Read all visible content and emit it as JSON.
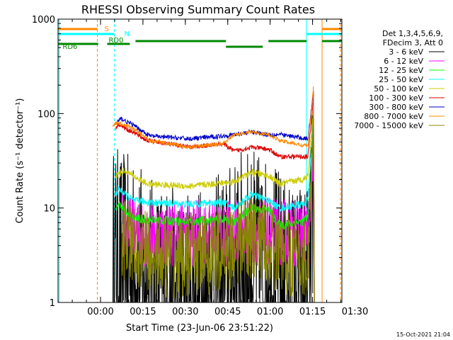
{
  "chart_data": {
    "type": "line",
    "title": "RHESSI Observing Summary Count Rates",
    "xlabel": "Start Time (23-Jun-06 23:51:22)",
    "ylabel": "Count Rate (s⁻¹ detector⁻¹)",
    "yscale": "log",
    "ylim": [
      1,
      1000
    ],
    "xlim_minutes": [
      -6.4,
      94
    ],
    "x_ticks": [
      {
        "m": 8.63,
        "label": "00:00"
      },
      {
        "m": 23.63,
        "label": "00:15"
      },
      {
        "m": 38.63,
        "label": "00:30"
      },
      {
        "m": 53.63,
        "label": "00:45"
      },
      {
        "m": 68.63,
        "label": "01:00"
      },
      {
        "m": 83.63,
        "label": "01:15"
      },
      {
        "m": 98.63,
        "label": "01:30"
      }
    ],
    "y_ticks": [
      {
        "v": 1,
        "label": "1"
      },
      {
        "v": 10,
        "label": "10"
      },
      {
        "v": 100,
        "label": "100"
      },
      {
        "v": 1000,
        "label": "1000"
      }
    ],
    "legend_header": [
      "Det 1,3,4,5,6,9,",
      "FDecim 3, Att 0"
    ],
    "legend_position": "top-right",
    "timestamp": "15-Oct-2021 21:04",
    "series": [
      {
        "name": "3 - 6 keV",
        "color": "#000000",
        "points": [
          [
            13,
            3
          ],
          [
            14,
            3
          ],
          [
            20,
            2.2
          ],
          [
            28,
            1.3
          ],
          [
            40,
            1
          ],
          [
            52,
            1.6
          ],
          [
            60,
            3
          ],
          [
            70,
            2
          ],
          [
            76,
            1.2
          ],
          [
            82,
            1.4
          ],
          [
            83,
            3.6
          ],
          [
            84,
            22
          ]
        ],
        "noise": 0.4,
        "dense": true
      },
      {
        "name": "6 - 12 keV",
        "color": "#ff00ff",
        "points": [
          [
            16,
            7
          ],
          [
            21,
            5.4
          ],
          [
            28,
            5.5
          ],
          [
            40,
            5.5
          ],
          [
            52,
            5.5
          ],
          [
            65,
            5.6
          ],
          [
            75,
            5.5
          ],
          [
            82,
            5.5
          ],
          [
            84,
            40
          ]
        ],
        "noise": 0.12,
        "dense": true
      },
      {
        "name": "12 - 25 keV",
        "color": "#00ff00",
        "points": [
          [
            14,
            9
          ],
          [
            15,
            11
          ],
          [
            16,
            10
          ],
          [
            20,
            7.8
          ],
          [
            25,
            7.5
          ],
          [
            40,
            7.2
          ],
          [
            52,
            7.6
          ],
          [
            56,
            7
          ],
          [
            62,
            10
          ],
          [
            68,
            9.5
          ],
          [
            72,
            6.5
          ],
          [
            80,
            7.2
          ],
          [
            82,
            8
          ],
          [
            84,
            55
          ]
        ],
        "noise": 0.05
      },
      {
        "name": "25 - 50 keV",
        "color": "#00ffff",
        "points": [
          [
            14,
            14
          ],
          [
            15,
            16
          ],
          [
            20,
            12
          ],
          [
            25,
            11.5
          ],
          [
            40,
            11
          ],
          [
            52,
            11.5
          ],
          [
            56,
            10
          ],
          [
            62,
            14
          ],
          [
            68,
            12
          ],
          [
            72,
            10
          ],
          [
            80,
            11
          ],
          [
            82,
            12
          ],
          [
            84,
            110
          ]
        ],
        "noise": 0.04
      },
      {
        "name": "50 - 100 keV",
        "color": "#cccc00",
        "points": [
          [
            14,
            22
          ],
          [
            17,
            25
          ],
          [
            20,
            22
          ],
          [
            25,
            18
          ],
          [
            40,
            17
          ],
          [
            52,
            18.5
          ],
          [
            56,
            19
          ],
          [
            62,
            24
          ],
          [
            68,
            22
          ],
          [
            72,
            18
          ],
          [
            80,
            20
          ],
          [
            82,
            22
          ],
          [
            84,
            120
          ]
        ],
        "noise": 0.035
      },
      {
        "name": "100 - 300 keV",
        "color": "#dd0000",
        "points": [
          [
            14,
            70
          ],
          [
            15,
            78
          ],
          [
            18,
            68
          ],
          [
            20,
            64
          ],
          [
            25,
            52
          ],
          [
            40,
            44
          ],
          [
            52,
            48
          ],
          [
            56,
            40
          ],
          [
            62,
            44
          ],
          [
            68,
            42
          ],
          [
            72,
            35
          ],
          [
            82,
            35
          ],
          [
            84,
            150
          ]
        ],
        "noise": 0.025
      },
      {
        "name": "300 - 800 keV",
        "color": "#0000cc",
        "points": [
          [
            14,
            80
          ],
          [
            16,
            88
          ],
          [
            20,
            76
          ],
          [
            26,
            58
          ],
          [
            40,
            54
          ],
          [
            52,
            58
          ],
          [
            56,
            60
          ],
          [
            62,
            64
          ],
          [
            68,
            60
          ],
          [
            72,
            60
          ],
          [
            80,
            55
          ],
          [
            82,
            54
          ],
          [
            84,
            180
          ]
        ],
        "noise": 0.025
      },
      {
        "name": "800 - 7000 keV",
        "color": "#ff8800",
        "points": [
          [
            13,
            76
          ],
          [
            15,
            80
          ],
          [
            20,
            70
          ],
          [
            26,
            52
          ],
          [
            40,
            44
          ],
          [
            52,
            48
          ],
          [
            56,
            60
          ],
          [
            62,
            64
          ],
          [
            68,
            60
          ],
          [
            72,
            52
          ],
          [
            80,
            46
          ],
          [
            82,
            46
          ],
          [
            84,
            200
          ]
        ],
        "noise": 0.02
      },
      {
        "name": "7000 - 15000 keV",
        "color": "#888800",
        "points": [
          [
            16,
            5
          ],
          [
            20,
            4
          ],
          [
            28,
            3.2
          ],
          [
            40,
            3
          ],
          [
            52,
            3.5
          ],
          [
            56,
            4
          ],
          [
            62,
            5
          ],
          [
            68,
            4.2
          ],
          [
            72,
            3.3
          ],
          [
            80,
            3
          ],
          [
            82,
            3
          ],
          [
            84,
            60
          ]
        ],
        "noise": 0.15,
        "dense": true
      }
    ],
    "overlay_segments": [
      {
        "color": "#008800",
        "label": "RD6",
        "segments": [
          [
            -6.4,
            7.8
          ],
          [
            11,
            19
          ]
        ],
        "y": 62
      },
      {
        "color": "#008800",
        "label": "RD0",
        "segments": [
          [
            21,
            53
          ],
          [
            68,
            81.5
          ],
          [
            87,
            94
          ]
        ],
        "y": 58
      },
      {
        "color": "#008800",
        "label": "",
        "segments": [
          [
            53,
            66
          ]
        ],
        "y": 66
      },
      {
        "color": "#ff8800",
        "label": "S",
        "segments": [
          [
            -6.4,
            7.5
          ],
          [
            87,
            94
          ]
        ],
        "y": 41
      },
      {
        "color": "#00ffff",
        "label": "N",
        "segments": [
          [
            -6.4,
            13.5
          ],
          [
            81.5,
            94
          ]
        ],
        "y": 48
      }
    ],
    "vlines": [
      {
        "m": -6,
        "color": "#00ffff",
        "style": "solid"
      },
      {
        "m": 7.5,
        "color": "#ff8800",
        "style": "dashed"
      },
      {
        "m": 13.5,
        "color": "#00ffff",
        "style": "dashed"
      },
      {
        "m": 81.5,
        "color": "#00ffff",
        "style": "solid"
      },
      {
        "m": 87,
        "color": "#ff8800",
        "style": "solid"
      },
      {
        "m": 93.5,
        "color": "#ff8800",
        "style": "dashed"
      }
    ]
  }
}
